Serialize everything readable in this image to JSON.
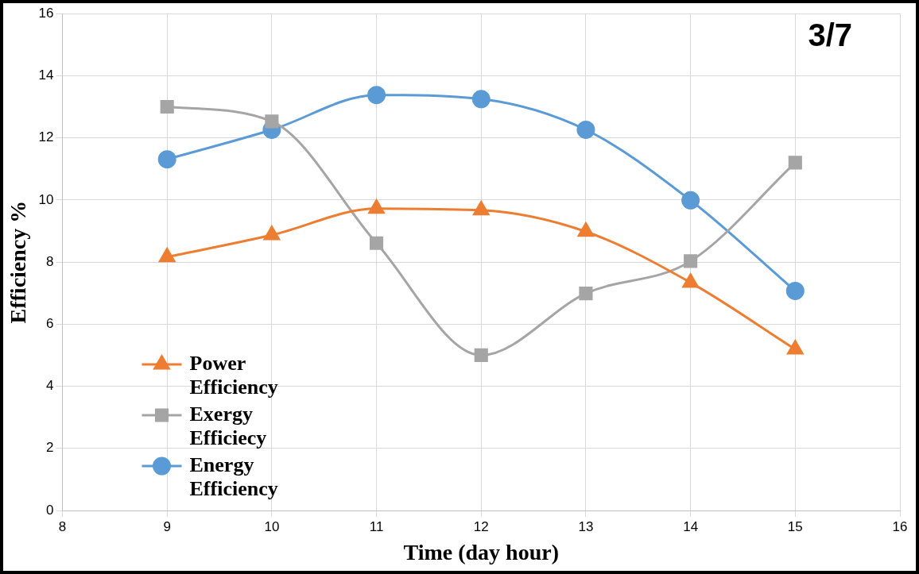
{
  "chart_data": {
    "type": "line",
    "xlabel": "Time (day hour)",
    "ylabel": "Efficiency %",
    "annotations": [
      "3/7"
    ],
    "x": [
      9,
      10,
      11,
      12,
      13,
      14,
      15
    ],
    "series": [
      {
        "name": "Power Efficiency",
        "color": "#ed7d31",
        "marker": "triangle",
        "values": [
          8.16,
          8.87,
          9.72,
          9.67,
          8.98,
          7.34,
          5.19
        ]
      },
      {
        "name": "Exergy Efficiecy",
        "color": "#a5a5a5",
        "marker": "square",
        "values": [
          13.0,
          12.53,
          8.61,
          5.0,
          6.99,
          8.03,
          11.2
        ]
      },
      {
        "name": "Energy Efficiency",
        "color": "#5b9bd5",
        "marker": "circle",
        "values": [
          11.31,
          12.26,
          13.38,
          13.25,
          12.26,
          9.99,
          7.07
        ]
      }
    ],
    "xlim": [
      8,
      16
    ],
    "xticks": [
      8,
      9,
      10,
      11,
      12,
      13,
      14,
      15,
      16
    ],
    "ylim": [
      0,
      16
    ],
    "yticks": [
      0,
      2,
      4,
      6,
      8,
      10,
      12,
      14,
      16
    ],
    "grid": true,
    "legend": "bottom left"
  }
}
